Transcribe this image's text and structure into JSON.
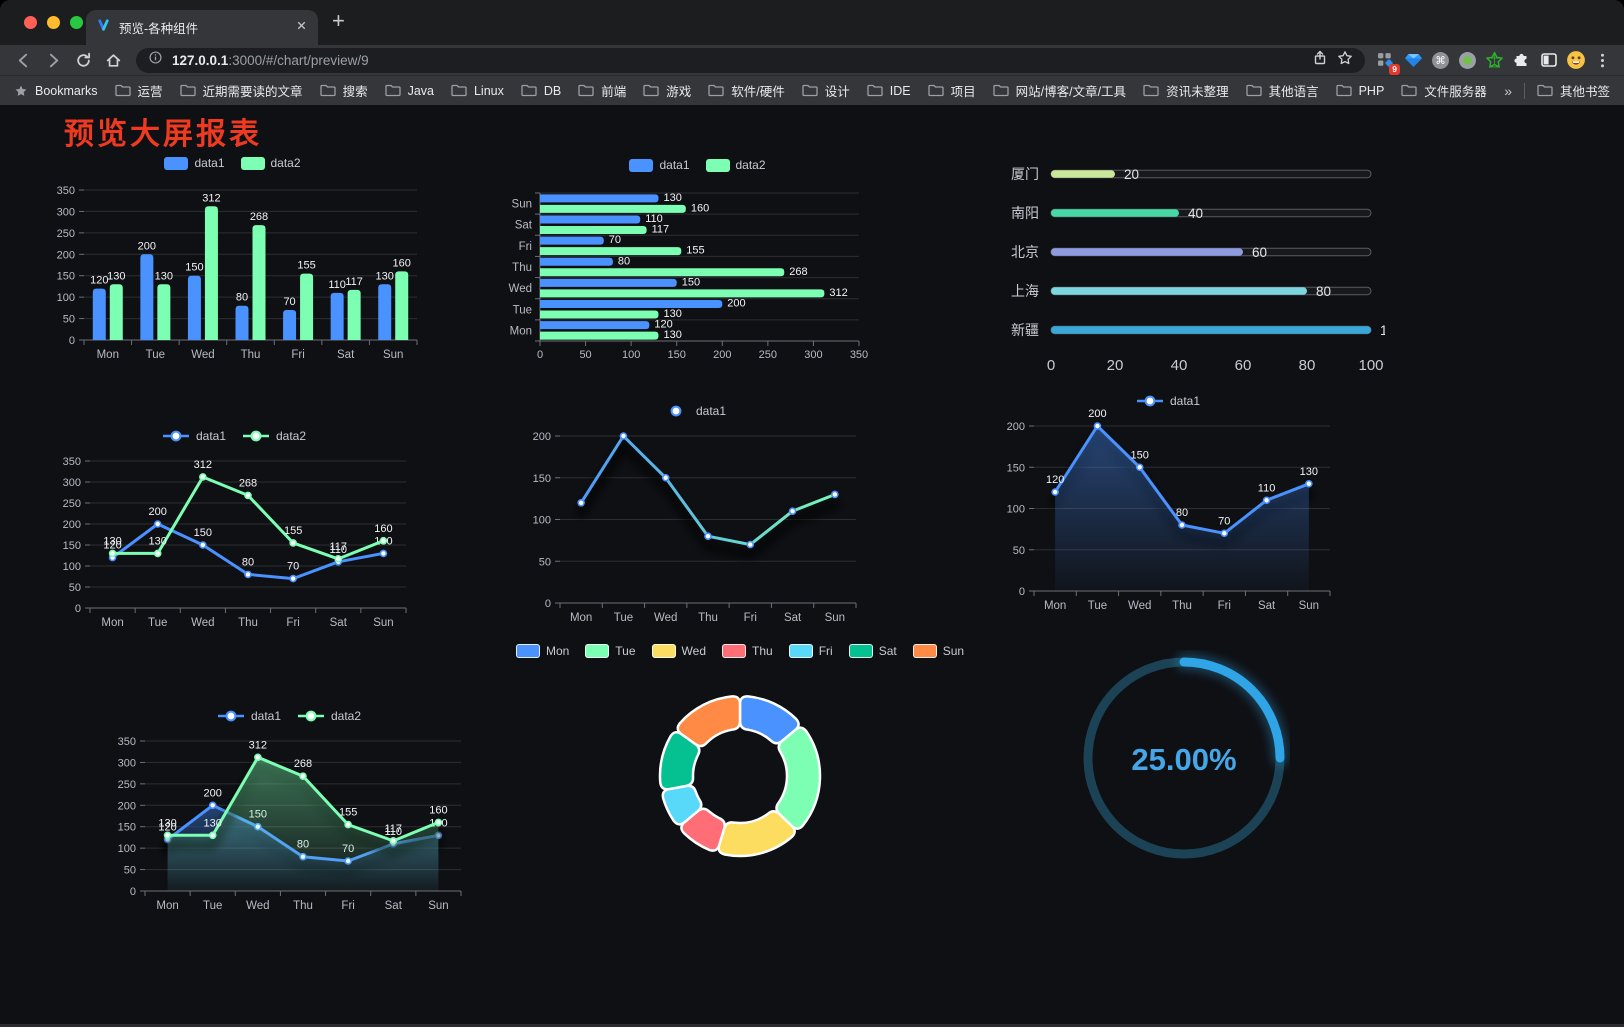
{
  "browser": {
    "tab": {
      "title": "预览-各种组件"
    },
    "new_tab_glyph": "+",
    "url": {
      "host": "127.0.0.1",
      "rest": ":3000/#/chart/preview/9"
    },
    "extensions": {
      "badge": "9"
    },
    "bookmarks_bar": {
      "label": "Bookmarks",
      "folders": [
        "运营",
        "近期需要读的文章",
        "搜索",
        "Java",
        "Linux",
        "DB",
        "前端",
        "游戏",
        "软件/硬件",
        "设计",
        "IDE",
        "项目",
        "网站/博客/文章/工具",
        "资讯未整理",
        "其他语言",
        "PHP",
        "文件服务器"
      ],
      "overflow": "»",
      "other": "其他书签"
    }
  },
  "page": {
    "title": "预览大屏报表",
    "title_color": "#ee3a21"
  },
  "palette": {
    "data1": "#4992ff",
    "data2": "#7cffb2",
    "grid": "rgba(255,255,255,0.13)",
    "axis": "#6e7079",
    "tick_text": "#b9bac6"
  },
  "chart_data": [
    {
      "id": "grouped-bar",
      "type": "bar",
      "categories": [
        "Mon",
        "Tue",
        "Wed",
        "Thu",
        "Fri",
        "Sat",
        "Sun"
      ],
      "series": [
        {
          "name": "data1",
          "color": "#4992ff",
          "values": [
            120,
            200,
            150,
            80,
            70,
            110,
            130
          ]
        },
        {
          "name": "data2",
          "color": "#7cffb2",
          "values": [
            130,
            130,
            312,
            268,
            155,
            117,
            160
          ]
        }
      ],
      "ylim": [
        0,
        350
      ],
      "yticks": [
        0,
        50,
        100,
        150,
        200,
        250,
        300,
        350
      ],
      "legend_position": "top",
      "value_labels": true
    },
    {
      "id": "grouped-bar-horizontal",
      "type": "bar-horizontal",
      "categories_top_to_bottom": [
        "Sun",
        "Sat",
        "Fri",
        "Thu",
        "Wed",
        "Tue",
        "Mon"
      ],
      "series": [
        {
          "name": "data1",
          "color": "#4992ff",
          "values_top_to_bottom": [
            130,
            110,
            70,
            80,
            150,
            200,
            120
          ]
        },
        {
          "name": "data2",
          "color": "#7cffb2",
          "values_top_to_bottom": [
            160,
            117,
            155,
            268,
            312,
            130,
            130
          ]
        }
      ],
      "xlim": [
        0,
        350
      ],
      "xticks": [
        0,
        50,
        100,
        150,
        200,
        250,
        300,
        350
      ],
      "legend_position": "top",
      "value_labels": true
    },
    {
      "id": "city-progress",
      "type": "progress",
      "items": [
        {
          "label": "厦门",
          "value": 20,
          "color": "#c9e89a"
        },
        {
          "label": "南阳",
          "value": 40,
          "color": "#45d9a5"
        },
        {
          "label": "北京",
          "value": 60,
          "color": "#8f9be0"
        },
        {
          "label": "上海",
          "value": 80,
          "color": "#7cd6dd"
        },
        {
          "label": "新疆",
          "value": 100,
          "color": "#39a8d8"
        }
      ],
      "xlim": [
        0,
        100
      ],
      "xticks": [
        0,
        20,
        40,
        60,
        80,
        100
      ]
    },
    {
      "id": "two-series-line",
      "type": "line",
      "categories": [
        "Mon",
        "Tue",
        "Wed",
        "Thu",
        "Fri",
        "Sat",
        "Sun"
      ],
      "series": [
        {
          "name": "data1",
          "color": "#4992ff",
          "values": [
            120,
            200,
            150,
            80,
            70,
            110,
            130
          ],
          "labels": true
        },
        {
          "name": "data2",
          "color": "#7cffb2",
          "values": [
            130,
            130,
            312,
            268,
            155,
            117,
            160
          ],
          "labels": true
        }
      ],
      "ylim": [
        0,
        350
      ],
      "yticks": [
        0,
        50,
        100,
        150,
        200,
        250,
        300,
        350
      ],
      "legend_position": "top"
    },
    {
      "id": "gradient-line",
      "type": "line",
      "categories": [
        "Mon",
        "Tue",
        "Wed",
        "Thu",
        "Fri",
        "Sat",
        "Sun"
      ],
      "series": [
        {
          "name": "data1",
          "color": "#4992ff",
          "gradient": [
            "#4992ff",
            "#7cffb2"
          ],
          "values": [
            120,
            200,
            150,
            80,
            70,
            110,
            130
          ],
          "labels": false,
          "shadow": true
        }
      ],
      "ylim": [
        0,
        200
      ],
      "yticks": [
        0,
        50,
        100,
        150,
        200
      ],
      "legend_position": "top"
    },
    {
      "id": "single-area-line",
      "type": "line",
      "categories": [
        "Mon",
        "Tue",
        "Wed",
        "Thu",
        "Fri",
        "Sat",
        "Sun"
      ],
      "series": [
        {
          "name": "data1",
          "color": "#4992ff",
          "area": true,
          "values": [
            120,
            200,
            150,
            80,
            70,
            110,
            130
          ],
          "labels": true,
          "shadow": true
        }
      ],
      "ylim": [
        0,
        200
      ],
      "yticks": [
        0,
        50,
        100,
        150,
        200
      ],
      "legend_position": "top"
    },
    {
      "id": "two-series-area-line",
      "type": "line",
      "categories": [
        "Mon",
        "Tue",
        "Wed",
        "Thu",
        "Fri",
        "Sat",
        "Sun"
      ],
      "series": [
        {
          "name": "data1",
          "color": "#4992ff",
          "area": true,
          "values": [
            120,
            200,
            150,
            80,
            70,
            110,
            130
          ],
          "labels": true,
          "shadow": true
        },
        {
          "name": "data2",
          "color": "#7cffb2",
          "area": true,
          "values": [
            130,
            130,
            312,
            268,
            155,
            117,
            160
          ],
          "labels": true,
          "shadow": true
        }
      ],
      "ylim": [
        0,
        350
      ],
      "yticks": [
        0,
        50,
        100,
        150,
        200,
        250,
        300,
        350
      ],
      "legend_position": "top"
    },
    {
      "id": "weekday-donut",
      "type": "pie",
      "items": [
        {
          "label": "Mon",
          "value": 120,
          "color": "#4992ff"
        },
        {
          "label": "Tue",
          "value": 200,
          "color": "#7cffb2"
        },
        {
          "label": "Wed",
          "value": 150,
          "color": "#fddd60"
        },
        {
          "label": "Thu",
          "value": 80,
          "color": "#ff6e76"
        },
        {
          "label": "Fri",
          "value": 70,
          "color": "#58d9f9"
        },
        {
          "label": "Sat",
          "value": 110,
          "color": "#05c091"
        },
        {
          "label": "Sun",
          "value": 130,
          "color": "#ff8a45"
        }
      ],
      "legend_position": "top"
    },
    {
      "id": "percent-gauge",
      "type": "gauge",
      "value": 25,
      "display": "25.00%",
      "color": "#2fa4e6",
      "track_color": "#1b4355",
      "text_color": "#45a7e8"
    }
  ]
}
